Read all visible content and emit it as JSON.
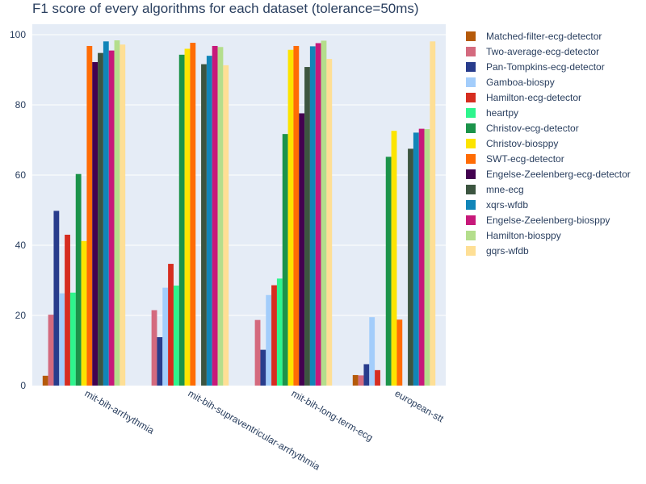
{
  "chart_data": {
    "type": "bar",
    "title": "F1 score of every algorithms for each dataset (tolerance=50ms)",
    "xlabel": "",
    "ylabel": "",
    "ylim": [
      0,
      103
    ],
    "yticks": [
      0,
      20,
      40,
      60,
      80,
      100
    ],
    "grid": true,
    "legend_position": "right",
    "categories": [
      "mit-bih-arrhythmia",
      "mit-bih-supraventricular-arrhythmia",
      "mit-bih-long-term-ecg",
      "european-stt"
    ],
    "series": [
      {
        "name": "Matched-filter-ecg-detector",
        "color": "#b55a0a",
        "values": [
          2.8,
          0,
          0,
          3.0
        ]
      },
      {
        "name": "Two-average-ecg-detector",
        "color": "#d46a7e",
        "values": [
          20.2,
          21.5,
          18.7,
          2.9
        ]
      },
      {
        "name": "Pan-Tompkins-ecg-detector",
        "color": "#283c8c",
        "values": [
          49.8,
          13.8,
          10.2,
          6.1
        ]
      },
      {
        "name": "Gamboa-biospy",
        "color": "#a3cdfb",
        "values": [
          26.3,
          27.9,
          25.8,
          19.5
        ]
      },
      {
        "name": "Hamilton-ecg-detector",
        "color": "#d62d20",
        "values": [
          43.0,
          34.7,
          28.6,
          4.4
        ]
      },
      {
        "name": "heartpy",
        "color": "#2ef58d",
        "values": [
          26.5,
          28.5,
          30.5,
          0
        ]
      },
      {
        "name": "Christov-ecg-detector",
        "color": "#1b934a",
        "values": [
          60.3,
          94.3,
          71.7,
          65.2
        ]
      },
      {
        "name": "Christov-biosppy",
        "color": "#fce400",
        "values": [
          41.2,
          96.0,
          95.7,
          72.6
        ]
      },
      {
        "name": "SWT-ecg-detector",
        "color": "#ff6c04",
        "values": [
          96.8,
          97.7,
          96.8,
          18.8
        ]
      },
      {
        "name": "Engelse-Zeelenberg-ecg-detector",
        "color": "#430150",
        "values": [
          92.2,
          0,
          77.6,
          0
        ]
      },
      {
        "name": "mne-ecg",
        "color": "#3c5540",
        "values": [
          94.8,
          91.6,
          90.8,
          67.5
        ]
      },
      {
        "name": "xqrs-wfdb",
        "color": "#1185b8",
        "values": [
          98.1,
          94.0,
          96.7,
          72.1
        ]
      },
      {
        "name": "Engelse-Zeelenberg-biosppy",
        "color": "#c7197a",
        "values": [
          95.5,
          96.8,
          97.6,
          73.2
        ]
      },
      {
        "name": "Hamilton-biosppy",
        "color": "#b4de8c",
        "values": [
          98.4,
          96.5,
          98.3,
          73.1
        ]
      },
      {
        "name": "gqrs-wfdb",
        "color": "#fedf95",
        "values": [
          97.2,
          91.3,
          93.1,
          98.1
        ]
      }
    ]
  }
}
